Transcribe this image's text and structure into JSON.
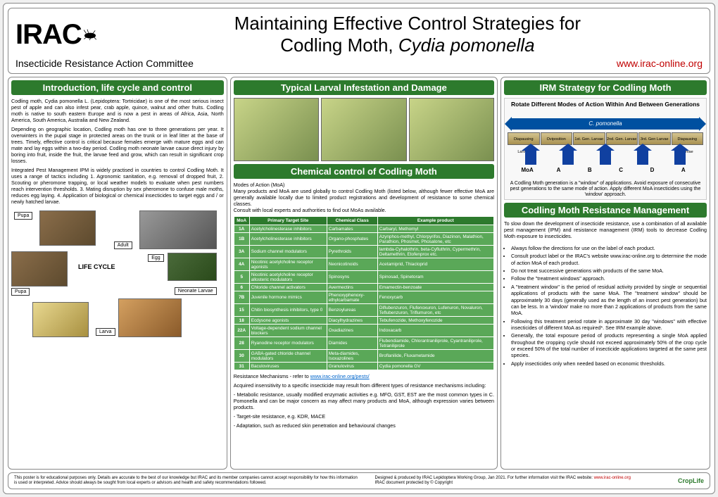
{
  "header": {
    "logo": "IRAC",
    "title_a": "Maintaining Effective Control Strategies for",
    "title_b": "Codling Moth, ",
    "title_c": "Cydia pomonella",
    "committee": "Insecticide Resistance Action Committee",
    "url": "www.irac-online.org"
  },
  "col1": {
    "h": "Introduction, life cycle and control",
    "p1": "Codling moth, Cydia pomonella L. (Lepidoptera: Tortricidae) is one of the most serious insect pest of apple and can also infest pear, crab apple, quince, walnut and other fruits. Codling moth is native to south eastern Europe and is now a pest in areas of Africa, Asia, North America, South America, Australia and New Zealand.",
    "p2": "Depending on geographic location, Codling moth has one to three generations per year. It overwinters in the pupal stage in protected areas on the trunk or in leaf litter at the base of trees. Timely, effective control is critical because females emerge with mature eggs and can mate and lay eggs within a two-day period. Codling moth neonate larvae cause direct injury by boring into fruit, inside the fruit, the larvae feed and grow, which can result in significant crop losses.",
    "p3": "Integrated Pest Management IPM is widely practised in countries to control Codling Moth. It uses a range of tactics including 1. Agronomic sanitation, e.g. removal of dropped fruit, 2. Scouting or pheromone trapping, or local weather models to evaluate when pest numbers reach intervention thresholds. 3. Mating disruption by sex pheromone to confuse male moths, reduces egg laying. 4. Application of biological or chemical insecticides to target eggs and / or newly hatched larvae.",
    "lc_title": "LIFE CYCLE",
    "lc": {
      "pupa": "Pupa",
      "adult": "Adult",
      "egg": "Egg",
      "neonate": "Neonate Larvae",
      "larva": "Larva"
    }
  },
  "col2": {
    "h1": "Typical Larval Infestation and Damage",
    "h2": "Chemical control of Codling Moth",
    "intro": "Modes of Action (MoA)\nMany products and MoA are used globally to control Codling Moth (listed below, although fewer effective MoA are generally available locally due to limited product registrations and development of resistance to some chemical classes.\nConsult with local experts and authorities to find out MoAs available.",
    "table": {
      "headers": [
        "MoA",
        "Primary Target Site",
        "Chemical Class",
        "Example product"
      ],
      "rows": [
        [
          "1A",
          "Acetylcholinesterase inhibitors",
          "Carbamates",
          "Carbaryl, Methomyl"
        ],
        [
          "1B",
          "Acetylcholinesterase inhibitors",
          "Organo-phosphates",
          "Azynphos-methyl, Chlorpyrifos, Diazinon, Malathion, Parathion, Phosmet, Phosalone, etc"
        ],
        [
          "3A",
          "Sodium channel modulators",
          "Pyrethroids",
          "lambda-Cyhalothrin, beta-Cyfluthrin, Cypermethrin, Deltamethrin, Etofenprox etc."
        ],
        [
          "4A",
          "Nicotinic acetylcholine receptor agonists",
          "Neonicotinoids",
          "Acetamiprid, Thiacloprid"
        ],
        [
          "5",
          "Nicotinic acetylcholine receptor allosteric modulators",
          "Spinosyns",
          "Spinosad, Spinetoram"
        ],
        [
          "6",
          "Chloride channel activators",
          "Avermectins",
          "Emamectin-benzoate"
        ],
        [
          "7B",
          "Juvenile hormone mimics",
          "Phenoxyphenoxy-ethylcarbamate",
          "Fenoxycarb"
        ],
        [
          "15",
          "Chitin biosynthesis inhibitors, type 0",
          "Benzoylureas",
          "Diflubenzuron, Flufenoxuron, Lufenuron, Novaluron, Teflubenzuron, Triflumuron, etc"
        ],
        [
          "18",
          "Ecdysone agonists",
          "Diacylhydrazines",
          "Tebufenozide, Methoxyfenozide"
        ],
        [
          "22A",
          "Voltage-dependent sodium channel blockers",
          "Oxadiazines",
          "Indoxacarb"
        ],
        [
          "28",
          "Ryanodine receptor modulators",
          "Diamides",
          "Flubendiamide, Chlorantraniliprole, Cyantraniliprole, Tetraniliprole"
        ],
        [
          "30",
          "GABA-gated chloride channel modulators",
          "Meta-diamides, Isoxazolines",
          "Broflanilide, Fluxametamide"
        ],
        [
          "31",
          "Baculoviruses",
          "Granulovirus",
          "Cydia pomonella GV"
        ]
      ]
    },
    "mech_title": "Resistance Mechanisms - refer to ",
    "mech_url": "www.irac-online.org/pests/",
    "mech1": "Acquired insensitivity to a specific insecticide may result from different types of resistance mechanisms including:",
    "mech2": "- Metabolic resistance, usually modified enzymatic activities e.g. MFO, GST, EST are the most common types in C. Pomonella and can be major concern as may affect many products and MoA, although expression varies between products.",
    "mech3": "- Target-site resistance, e.g. KDR, MACE",
    "mech4": "- Adaptation, such as reduced skin penetration and behavioural changes"
  },
  "col3": {
    "h1": "IRM Strategy for Codling Moth",
    "diag": {
      "title": "Rotate Different Modes of Action Within And Between Generations",
      "bar": "C. pomonella",
      "stages": [
        "Diapausing Larvae",
        "Oviposition",
        "1st. Gen. Larvae",
        "2nd. Gen. Larvae",
        "3rd. Gen Larvae",
        "Diapausing Larvae"
      ],
      "moa": [
        "MoA",
        "A",
        "B",
        "C",
        "D",
        "A"
      ],
      "caption": "A Codling Moth generation is a \"window\" of applications. Avoid exposure of consecutive pest generations to the same mode of action. Apply different MoA insecticides using the 'window' approach."
    },
    "h2": "Codling Moth Resistance Management",
    "intro": "To slow down the development of insecticide resistance, use a combination of all available pest management (IPM) and resistance management (IRM) tools to decrease Codling Moth exposure to insecticides.",
    "bullets": [
      "Always follow the directions for use on the label of each product.",
      "Consult product label or the IRAC's website www.irac-online.org to determine the mode of action MoA of each product.",
      "Do not treat successive generations with products of the same MoA.",
      "Follow the \"treatment windows\" approach.",
      "A \"treatment window\" is the period of residual activity provided by single or sequential applications of products with the same MoA. The \"treatment window\" should be approximately 30 days (generally used as the length of an insect pest generation) but can be less. In a 'window' make no more than 2 applications of products from the same MoA.",
      "Following this treatment period rotate in approximate 30 day \"windows\" with effective insecticides of different MoA as required*. See IRM example above.",
      "Generally, the total exposure period of products representing a single MoA applied throughout the cropping cycle should not exceed approximately 50% of the crop cycle or exceed 50% of the total number of insecticide applications targeted at the same pest species.",
      "Apply insecticides only when needed based on economic thresholds."
    ]
  },
  "footer": {
    "left": "This poster is for educational purposes only. Details are accurate to the best of our knowledge but IRAC and its member companies cannot accept responsibility for how this information is used or interpreted. Advice should always be sought from local experts or advisors and health and safety recommendations followed.",
    "right_a": "Designed & produced by IRAC Lepidoptera Working Group, Jan 2021. For further information visit the IRAC website: ",
    "right_url": "www.irac-online.org",
    "right_b": "IRAC document protected by © Copyright",
    "croplife": "CropLife"
  }
}
